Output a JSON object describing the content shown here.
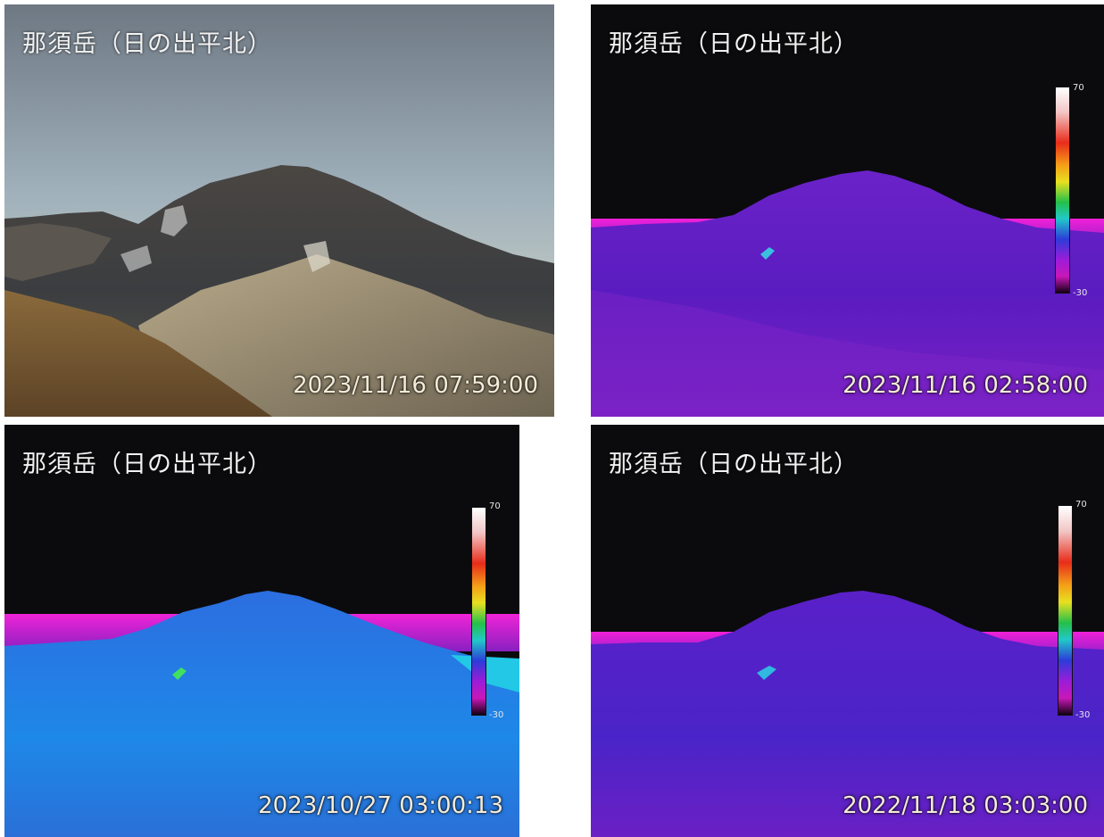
{
  "panels": [
    {
      "id": "visible",
      "title": "那須岳（日の出平北）",
      "timestamp": "2023/11/16 07:59:00",
      "mode": "visible",
      "has_scale": false
    },
    {
      "id": "thermal-2023-11-16",
      "title": "那須岳（日の出平北）",
      "timestamp": "2023/11/16 02:58:00",
      "mode": "thermal",
      "has_scale": true,
      "scale_max": "70",
      "scale_min": "-30"
    },
    {
      "id": "thermal-2023-10-27",
      "title": "那須岳（日の出平北）",
      "timestamp": "2023/10/27 03:00:13",
      "mode": "thermal",
      "has_scale": true,
      "scale_max": "70",
      "scale_min": "-30"
    },
    {
      "id": "thermal-2022-11-18",
      "title": "那須岳（日の出平北）",
      "timestamp": "2022/11/18 03:03:00",
      "mode": "thermal",
      "has_scale": true,
      "scale_max": "70",
      "scale_min": "-30"
    }
  ]
}
